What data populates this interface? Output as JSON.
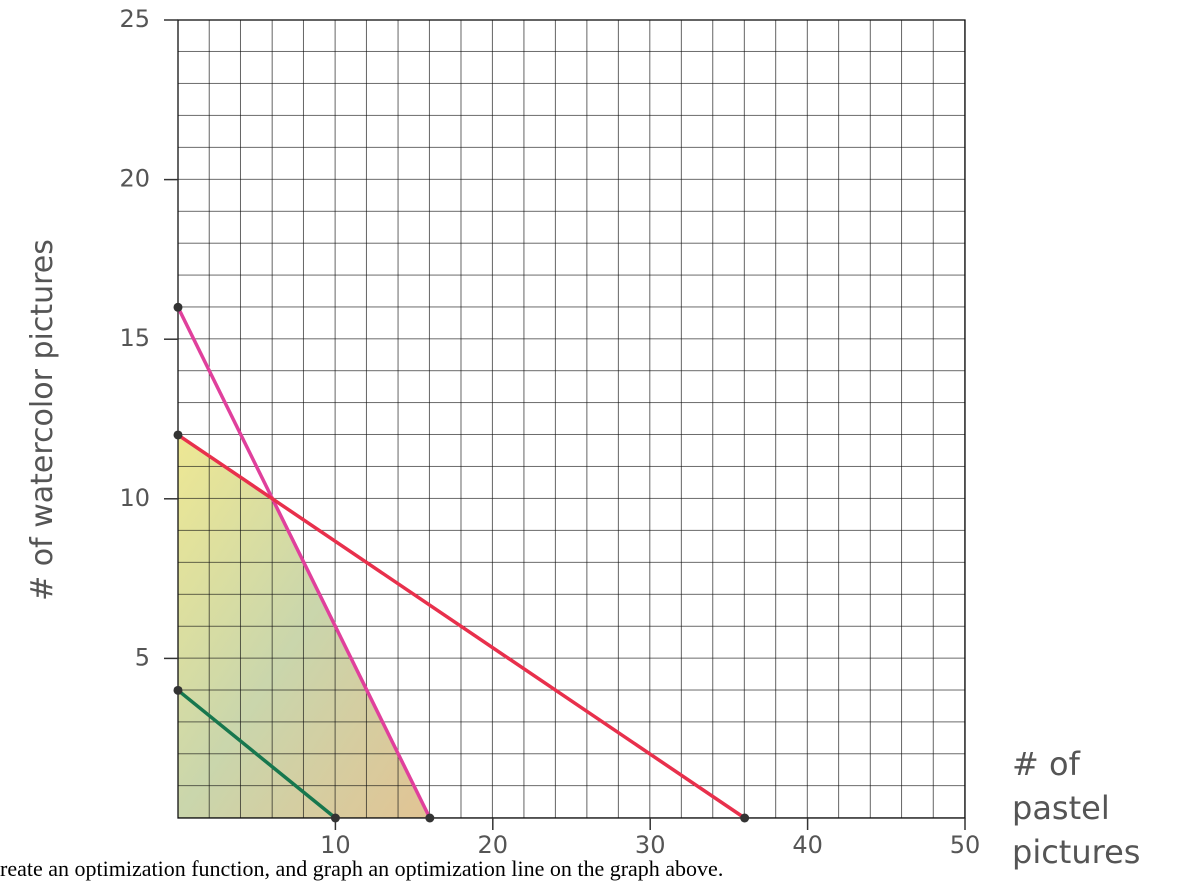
{
  "chart_data": {
    "type": "line",
    "y_label": "# of watercolor pictures",
    "x_label": "# of pastel pictures",
    "caption": "reate an optimization function, and graph an optimization line on the graph above.",
    "xlim": [
      0,
      50
    ],
    "ylim": [
      0,
      25
    ],
    "xticks": [
      10,
      20,
      30,
      40,
      50
    ],
    "yticks": [
      5,
      10,
      15,
      20,
      25
    ],
    "series": [
      {
        "color": "#e0409c",
        "x": [
          0,
          16
        ],
        "values": [
          16,
          0
        ]
      },
      {
        "color": "#e8304c",
        "x": [
          0,
          36
        ],
        "values": [
          12,
          0
        ]
      },
      {
        "color": "#17774e",
        "x": [
          0,
          10
        ],
        "values": [
          4,
          0
        ]
      }
    ]
  }
}
